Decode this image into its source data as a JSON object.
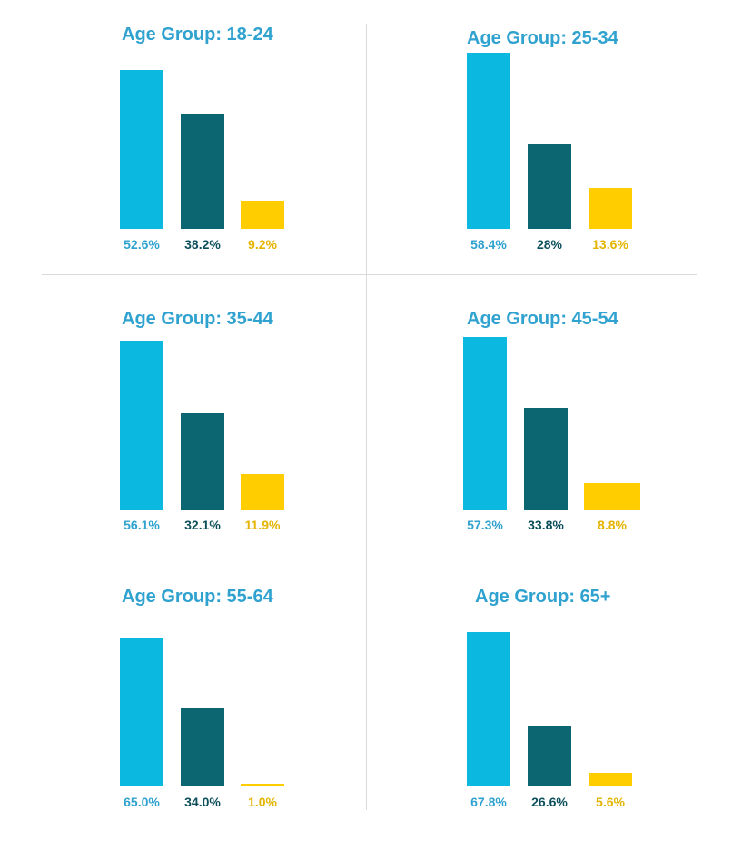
{
  "colors": {
    "series_1": "#0ab8e0",
    "series_2": "#0c6672",
    "series_3": "#ffcd00",
    "title": "#2fa2cf",
    "label_1": "#2fa2cf",
    "label_2": "#0c4f5b",
    "label_3": "#e3b400",
    "divider": "#d9d9d9"
  },
  "chart_data": [
    {
      "type": "bar",
      "title": "Age Group: 18-24",
      "values": [
        52.6,
        38.2,
        9.2
      ],
      "labels": [
        "52.6%",
        "38.2%",
        "9.2%"
      ]
    },
    {
      "type": "bar",
      "title": "Age Group: 25-34",
      "values": [
        58.4,
        28,
        13.6
      ],
      "labels": [
        "58.4%",
        "28%",
        "13.6%"
      ]
    },
    {
      "type": "bar",
      "title": "Age Group: 35-44",
      "values": [
        56.1,
        32.1,
        11.9
      ],
      "labels": [
        "56.1%",
        "32.1%",
        "11.9%"
      ]
    },
    {
      "type": "bar",
      "title": "Age Group: 45-54",
      "values": [
        57.3,
        33.8,
        8.8
      ],
      "labels": [
        "57.3%",
        "33.8%",
        "8.8%"
      ]
    },
    {
      "type": "bar",
      "title": "Age Group: 55-64",
      "values": [
        65.0,
        34.0,
        1.0
      ],
      "labels": [
        "65.0%",
        "34.0%",
        "1.0%"
      ]
    },
    {
      "type": "bar",
      "title": "Age Group: 65+",
      "values": [
        67.8,
        26.6,
        5.6
      ],
      "labels": [
        "67.8%",
        "26.6%",
        "5.6%"
      ]
    }
  ]
}
